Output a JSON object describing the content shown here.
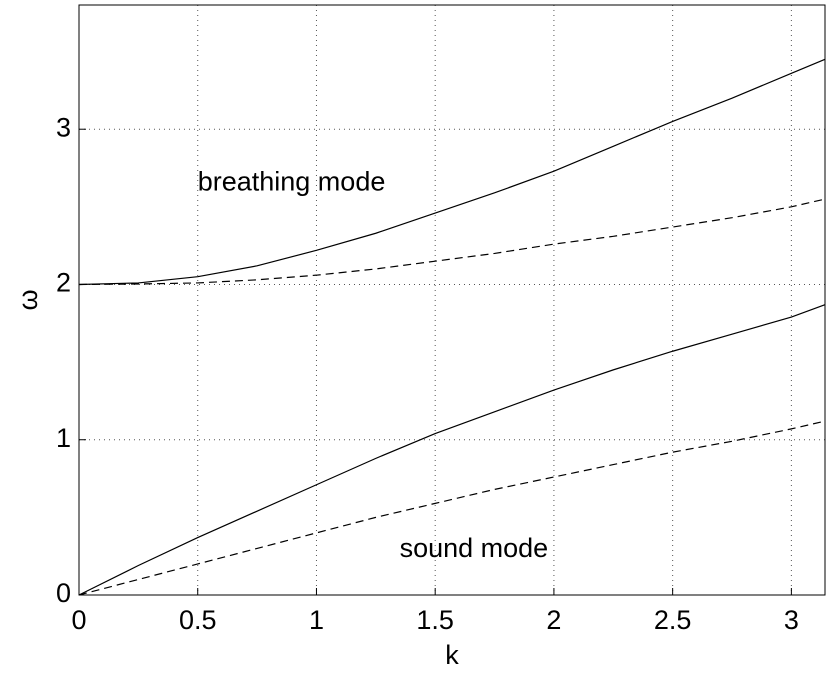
{
  "chart_data": {
    "type": "line",
    "x_label": "k",
    "y_label": "ω",
    "x": [
      0,
      0.25,
      0.5,
      0.75,
      1,
      1.25,
      1.5,
      1.75,
      2,
      2.25,
      2.5,
      2.75,
      3,
      3.1416
    ],
    "series": [
      {
        "color": "#000000",
        "dash": false,
        "values": [
          2.0,
          2.01,
          2.05,
          2.12,
          2.22,
          2.33,
          2.46,
          2.59,
          2.73,
          2.89,
          3.05,
          3.2,
          3.36,
          3.45
        ]
      },
      {
        "color": "#000000",
        "dash": true,
        "values": [
          2.0,
          2.003,
          2.01,
          2.03,
          2.06,
          2.1,
          2.15,
          2.2,
          2.26,
          2.31,
          2.37,
          2.43,
          2.5,
          2.55
        ]
      },
      {
        "color": "#000000",
        "dash": false,
        "values": [
          0,
          0.19,
          0.37,
          0.54,
          0.71,
          0.88,
          1.04,
          1.18,
          1.32,
          1.45,
          1.57,
          1.68,
          1.79,
          1.87
        ]
      },
      {
        "color": "#000000",
        "dash": true,
        "values": [
          0,
          0.1,
          0.2,
          0.3,
          0.4,
          0.5,
          0.59,
          0.68,
          0.76,
          0.84,
          0.92,
          0.99,
          1.07,
          1.12
        ]
      }
    ],
    "annotations": [
      {
        "text": "breathing mode",
        "x": 0.5,
        "y": 2.65
      },
      {
        "text": "sound mode",
        "x": 1.35,
        "y": 0.29
      }
    ],
    "xlim": [
      0,
      3.1416
    ],
    "ylim": [
      0,
      3.8
    ],
    "xticks": [
      0,
      0.5,
      1,
      1.5,
      2,
      2.5,
      3
    ],
    "yticks": [
      0,
      1,
      2,
      3
    ],
    "grid": true
  }
}
